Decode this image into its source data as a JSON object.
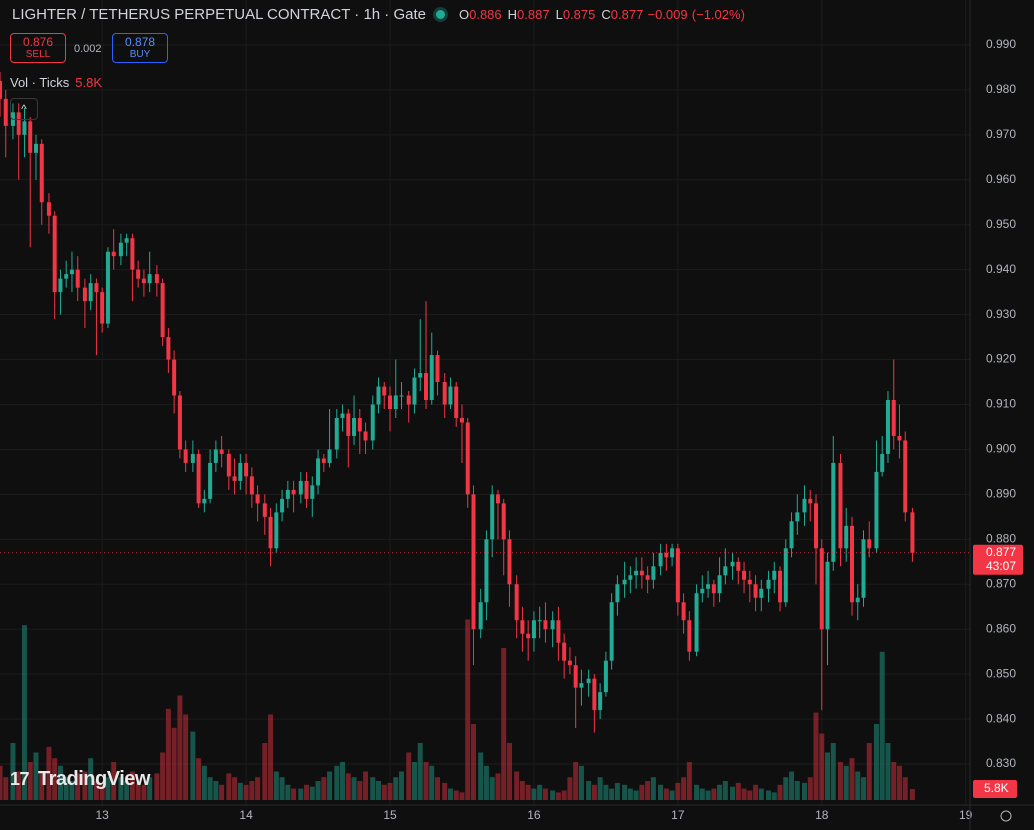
{
  "chart_data": {
    "type": "candlestick",
    "title": "LIGHTER / TETHERUS PERPETUAL CONTRACT · 1h · Gate",
    "ohlc_legend": [
      {
        "key": "O",
        "value": 0.886
      },
      {
        "key": "H",
        "value": 0.887
      },
      {
        "key": "L",
        "value": 0.875
      },
      {
        "key": "C",
        "value": 0.877
      }
    ],
    "change": {
      "value": -0.009,
      "label": "−0.009"
    },
    "change_pct": {
      "value": -1.02,
      "label": "(−1.02%)"
    },
    "trade": {
      "sell": {
        "price": 0.876,
        "label": "SELL"
      },
      "spread": 0.002,
      "buy": {
        "price": 0.878,
        "label": "BUY"
      }
    },
    "vol_indicator": {
      "name": "Vol · Ticks",
      "value": {
        "value": 5800,
        "label": "5.8K"
      }
    },
    "last_price": 0.877,
    "countdown": "43:07",
    "watermark": "TradingView",
    "up_color": "#22ab94",
    "down_color": "#f23645",
    "grid": true,
    "xlim": [
      12.29,
      19.03
    ],
    "xticks": [
      13,
      14,
      15,
      16,
      17,
      18,
      19
    ],
    "ylim": [
      0.822,
      1.0
    ],
    "yticks": [
      {
        "value": 0.83,
        "label": "0.830"
      },
      {
        "value": 0.84,
        "label": "0.840"
      },
      {
        "value": 0.85,
        "label": "0.850"
      },
      {
        "value": 0.86,
        "label": "0.860"
      },
      {
        "value": 0.87,
        "label": "0.870"
      },
      {
        "value": 0.88,
        "label": "0.880"
      },
      {
        "value": 0.89,
        "label": "0.890"
      },
      {
        "value": 0.9,
        "label": "0.900"
      },
      {
        "value": 0.91,
        "label": "0.910"
      },
      {
        "value": 0.92,
        "label": "0.920"
      },
      {
        "value": 0.93,
        "label": "0.930"
      },
      {
        "value": 0.94,
        "label": "0.940"
      },
      {
        "value": 0.95,
        "label": "0.950"
      },
      {
        "value": 0.96,
        "label": "0.960"
      },
      {
        "value": 0.97,
        "label": "0.970"
      },
      {
        "value": 0.98,
        "label": "0.980"
      },
      {
        "value": 0.99,
        "label": "0.990"
      }
    ],
    "volume_lim": [
      0,
      100000
    ],
    "x": [
      12.29,
      12.33,
      12.38,
      12.42,
      12.46,
      12.5,
      12.54,
      12.58,
      12.63,
      12.67,
      12.71,
      12.75,
      12.79,
      12.83,
      12.88,
      12.92,
      12.96,
      13,
      13.04,
      13.08,
      13.13,
      13.17,
      13.21,
      13.25,
      13.29,
      13.33,
      13.38,
      13.42,
      13.46,
      13.5,
      13.54,
      13.58,
      13.63,
      13.67,
      13.71,
      13.75,
      13.79,
      13.83,
      13.88,
      13.92,
      13.96,
      14,
      14.04,
      14.08,
      14.13,
      14.17,
      14.21,
      14.25,
      14.29,
      14.33,
      14.38,
      14.42,
      14.46,
      14.5,
      14.54,
      14.58,
      14.63,
      14.67,
      14.71,
      14.75,
      14.79,
      14.83,
      14.88,
      14.92,
      14.96,
      15,
      15.04,
      15.08,
      15.13,
      15.17,
      15.21,
      15.25,
      15.29,
      15.33,
      15.38,
      15.42,
      15.46,
      15.5,
      15.54,
      15.58,
      15.63,
      15.67,
      15.71,
      15.75,
      15.79,
      15.83,
      15.88,
      15.92,
      15.96,
      16,
      16.04,
      16.08,
      16.13,
      16.17,
      16.21,
      16.25,
      16.29,
      16.33,
      16.38,
      16.42,
      16.46,
      16.5,
      16.54,
      16.58,
      16.63,
      16.67,
      16.71,
      16.75,
      16.79,
      16.83,
      16.88,
      16.92,
      16.96,
      17,
      17.04,
      17.08,
      17.13,
      17.17,
      17.21,
      17.25,
      17.29,
      17.33,
      17.38,
      17.42,
      17.46,
      17.5,
      17.54,
      17.58,
      17.63,
      17.67,
      17.71,
      17.75,
      17.79,
      17.83,
      17.88,
      17.92,
      17.96,
      18,
      18.04,
      18.08,
      18.13,
      18.17,
      18.21,
      18.25,
      18.29,
      18.33,
      18.38,
      18.42,
      18.46,
      18.5,
      18.54,
      18.58,
      18.63
    ],
    "open": [
      0.982,
      0.978,
      0.972,
      0.975,
      0.97,
      0.973,
      0.966,
      0.968,
      0.955,
      0.952,
      0.935,
      0.938,
      0.939,
      0.94,
      0.936,
      0.933,
      0.937,
      0.935,
      0.928,
      0.944,
      0.943,
      0.946,
      0.947,
      0.94,
      0.938,
      0.937,
      0.939,
      0.937,
      0.925,
      0.92,
      0.912,
      0.9,
      0.897,
      0.899,
      0.888,
      0.889,
      0.897,
      0.9,
      0.899,
      0.894,
      0.893,
      0.897,
      0.894,
      0.89,
      0.888,
      0.885,
      0.878,
      0.886,
      0.889,
      0.891,
      0.89,
      0.893,
      0.889,
      0.892,
      0.898,
      0.897,
      0.9,
      0.907,
      0.908,
      0.903,
      0.907,
      0.904,
      0.902,
      0.91,
      0.914,
      0.912,
      0.909,
      0.912,
      0.912,
      0.91,
      0.916,
      0.917,
      0.911,
      0.921,
      0.915,
      0.91,
      0.914,
      0.907,
      0.906,
      0.89,
      0.86,
      0.866,
      0.88,
      0.89,
      0.888,
      0.88,
      0.87,
      0.862,
      0.859,
      0.858,
      0.862,
      0.862,
      0.86,
      0.862,
      0.857,
      0.853,
      0.852,
      0.847,
      0.848,
      0.849,
      0.842,
      0.846,
      0.853,
      0.866,
      0.87,
      0.871,
      0.872,
      0.873,
      0.872,
      0.871,
      0.874,
      0.877,
      0.876,
      0.878,
      0.866,
      0.862,
      0.855,
      0.868,
      0.869,
      0.87,
      0.868,
      0.872,
      0.874,
      0.875,
      0.873,
      0.871,
      0.87,
      0.867,
      0.869,
      0.871,
      0.873,
      0.866,
      0.878,
      0.884,
      0.886,
      0.889,
      0.888,
      0.878,
      0.86,
      0.875,
      0.897,
      0.878,
      0.883,
      0.866,
      0.867,
      0.88,
      0.878,
      0.895,
      0.899,
      0.911,
      0.903,
      0.902,
      0.886
    ],
    "high": [
      0.984,
      0.98,
      0.977,
      0.977,
      0.976,
      0.974,
      0.97,
      0.969,
      0.957,
      0.953,
      0.94,
      0.942,
      0.944,
      0.943,
      0.938,
      0.939,
      0.938,
      0.936,
      0.945,
      0.949,
      0.948,
      0.948,
      0.948,
      0.942,
      0.94,
      0.944,
      0.941,
      0.938,
      0.927,
      0.922,
      0.913,
      0.902,
      0.902,
      0.9,
      0.891,
      0.9,
      0.902,
      0.903,
      0.9,
      0.898,
      0.899,
      0.899,
      0.896,
      0.892,
      0.89,
      0.887,
      0.888,
      0.891,
      0.893,
      0.893,
      0.895,
      0.895,
      0.894,
      0.9,
      0.899,
      0.909,
      0.909,
      0.91,
      0.909,
      0.912,
      0.909,
      0.906,
      0.912,
      0.916,
      0.915,
      0.914,
      0.92,
      0.915,
      0.913,
      0.918,
      0.929,
      0.933,
      0.926,
      0.922,
      0.917,
      0.916,
      0.915,
      0.91,
      0.907,
      0.892,
      0.869,
      0.882,
      0.892,
      0.891,
      0.889,
      0.882,
      0.872,
      0.865,
      0.862,
      0.864,
      0.865,
      0.866,
      0.864,
      0.865,
      0.859,
      0.856,
      0.854,
      0.851,
      0.851,
      0.85,
      0.848,
      0.855,
      0.868,
      0.872,
      0.875,
      0.874,
      0.876,
      0.876,
      0.874,
      0.877,
      0.879,
      0.879,
      0.879,
      0.879,
      0.868,
      0.864,
      0.87,
      0.872,
      0.873,
      0.871,
      0.876,
      0.878,
      0.877,
      0.876,
      0.875,
      0.873,
      0.872,
      0.871,
      0.873,
      0.875,
      0.874,
      0.88,
      0.886,
      0.89,
      0.892,
      0.891,
      0.89,
      0.88,
      0.877,
      0.903,
      0.899,
      0.887,
      0.885,
      0.87,
      0.882,
      0.884,
      0.902,
      0.903,
      0.913,
      0.92,
      0.91,
      0.904,
      0.887
    ],
    "low": [
      0.974,
      0.965,
      0.969,
      0.96,
      0.965,
      0.945,
      0.96,
      0.95,
      0.948,
      0.929,
      0.93,
      0.936,
      0.935,
      0.933,
      0.927,
      0.931,
      0.921,
      0.926,
      0.927,
      0.94,
      0.941,
      0.943,
      0.933,
      0.936,
      0.934,
      0.935,
      0.934,
      0.923,
      0.917,
      0.908,
      0.898,
      0.895,
      0.895,
      0.887,
      0.886,
      0.888,
      0.895,
      0.896,
      0.891,
      0.89,
      0.891,
      0.89,
      0.887,
      0.884,
      0.881,
      0.874,
      0.877,
      0.884,
      0.887,
      0.886,
      0.888,
      0.887,
      0.885,
      0.89,
      0.895,
      0.896,
      0.898,
      0.904,
      0.896,
      0.901,
      0.899,
      0.899,
      0.9,
      0.908,
      0.909,
      0.904,
      0.907,
      0.909,
      0.906,
      0.908,
      0.913,
      0.909,
      0.91,
      0.912,
      0.907,
      0.909,
      0.905,
      0.897,
      0.887,
      0.852,
      0.858,
      0.862,
      0.876,
      0.88,
      0.872,
      0.865,
      0.858,
      0.855,
      0.853,
      0.855,
      0.858,
      0.857,
      0.856,
      0.853,
      0.849,
      0.85,
      0.838,
      0.843,
      0.845,
      0.837,
      0.84,
      0.845,
      0.851,
      0.863,
      0.867,
      0.868,
      0.869,
      0.869,
      0.868,
      0.869,
      0.872,
      0.873,
      0.874,
      0.863,
      0.859,
      0.853,
      0.854,
      0.866,
      0.867,
      0.865,
      0.866,
      0.87,
      0.871,
      0.87,
      0.868,
      0.866,
      0.864,
      0.864,
      0.866,
      0.868,
      0.864,
      0.865,
      0.876,
      0.881,
      0.883,
      0.884,
      0.87,
      0.842,
      0.852,
      0.873,
      0.874,
      0.875,
      0.863,
      0.862,
      0.865,
      0.876,
      0.877,
      0.894,
      0.897,
      0.9,
      0.898,
      0.884,
      0.875
    ],
    "close": [
      0.978,
      0.972,
      0.975,
      0.97,
      0.973,
      0.966,
      0.968,
      0.955,
      0.952,
      0.935,
      0.938,
      0.939,
      0.94,
      0.936,
      0.933,
      0.937,
      0.935,
      0.928,
      0.944,
      0.943,
      0.946,
      0.947,
      0.94,
      0.938,
      0.937,
      0.939,
      0.937,
      0.925,
      0.92,
      0.912,
      0.9,
      0.897,
      0.899,
      0.888,
      0.889,
      0.897,
      0.9,
      0.899,
      0.894,
      0.893,
      0.897,
      0.894,
      0.89,
      0.888,
      0.885,
      0.878,
      0.886,
      0.889,
      0.891,
      0.89,
      0.893,
      0.889,
      0.892,
      0.898,
      0.897,
      0.9,
      0.907,
      0.908,
      0.903,
      0.907,
      0.904,
      0.902,
      0.91,
      0.914,
      0.912,
      0.909,
      0.912,
      0.912,
      0.91,
      0.916,
      0.917,
      0.911,
      0.921,
      0.915,
      0.91,
      0.914,
      0.907,
      0.906,
      0.89,
      0.86,
      0.866,
      0.88,
      0.89,
      0.888,
      0.88,
      0.87,
      0.862,
      0.859,
      0.858,
      0.862,
      0.862,
      0.86,
      0.862,
      0.857,
      0.853,
      0.852,
      0.847,
      0.848,
      0.849,
      0.842,
      0.846,
      0.853,
      0.866,
      0.87,
      0.871,
      0.872,
      0.873,
      0.872,
      0.871,
      0.874,
      0.877,
      0.876,
      0.878,
      0.866,
      0.862,
      0.855,
      0.868,
      0.869,
      0.87,
      0.868,
      0.872,
      0.874,
      0.875,
      0.873,
      0.871,
      0.87,
      0.867,
      0.869,
      0.871,
      0.873,
      0.866,
      0.878,
      0.884,
      0.886,
      0.889,
      0.888,
      0.878,
      0.86,
      0.875,
      0.897,
      0.878,
      0.883,
      0.866,
      0.867,
      0.88,
      0.878,
      0.895,
      0.899,
      0.911,
      0.903,
      0.902,
      0.886,
      0.877
    ],
    "volume": [
      18000,
      12000,
      30000,
      15000,
      92000,
      20000,
      25000,
      14000,
      28000,
      22000,
      18000,
      12000,
      10000,
      14000,
      15000,
      22000,
      10000,
      8000,
      12000,
      20000,
      12000,
      10000,
      15000,
      9000,
      8000,
      12000,
      14000,
      25000,
      48000,
      38000,
      55000,
      45000,
      36000,
      22000,
      18000,
      12000,
      10000,
      8000,
      14000,
      12000,
      9000,
      8000,
      10000,
      12000,
      30000,
      45000,
      15000,
      12000,
      8000,
      6000,
      6000,
      8000,
      7000,
      10000,
      12000,
      15000,
      18000,
      20000,
      14000,
      12000,
      10000,
      15000,
      12000,
      10000,
      8000,
      9000,
      12000,
      15000,
      25000,
      20000,
      30000,
      20000,
      18000,
      12000,
      9000,
      6000,
      5000,
      4000,
      95000,
      40000,
      25000,
      18000,
      12000,
      14000,
      80000,
      30000,
      15000,
      10000,
      8000,
      6000,
      8000,
      6000,
      5000,
      4000,
      5000,
      12000,
      20000,
      18000,
      10000,
      8000,
      12000,
      8000,
      6000,
      9000,
      8000,
      6000,
      5000,
      8000,
      10000,
      12000,
      8000,
      6000,
      5000,
      9000,
      12000,
      20000,
      8000,
      6000,
      5000,
      6000,
      8000,
      10000,
      7000,
      9000,
      6000,
      5000,
      8000,
      6000,
      5000,
      4000,
      8000,
      12000,
      15000,
      10000,
      9000,
      12000,
      46000,
      35000,
      25000,
      30000,
      20000,
      18000,
      22000,
      15000,
      12000,
      30000,
      40000,
      78000,
      30000,
      20000,
      18000,
      12000,
      5800
    ]
  }
}
